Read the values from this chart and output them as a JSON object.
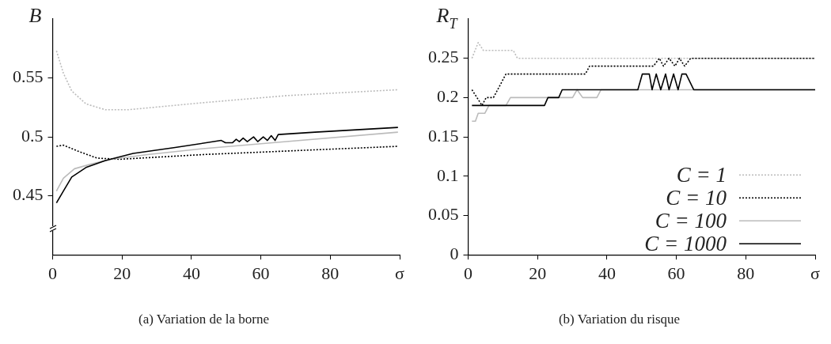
{
  "chart_data": [
    {
      "type": "line",
      "title": "(a) Variation de la borne",
      "ylabel": "B",
      "xlim": [
        0,
        100
      ],
      "ylim": [
        0.4,
        0.6
      ],
      "xticks": [
        0,
        20,
        40,
        60,
        80,
        {
          "value": 100,
          "label": "σ"
        }
      ],
      "yticks": [
        0.45,
        0.5,
        0.55
      ],
      "grid": false,
      "legend": false,
      "marker": "none",
      "series": [
        {
          "color": "#bbbbbb",
          "line_style": "dotted",
          "x": [
            1.1,
            3.1,
            5.5,
            9.6,
            15.2,
            21.7,
            43.3,
            67.4,
            99.5
          ],
          "values": [
            0.573,
            0.554,
            0.539,
            0.528,
            0.523,
            0.523,
            0.529,
            0.535,
            0.54
          ]
        },
        {
          "color": "#000000",
          "line_style": "dotted",
          "x": [
            1.1,
            3.1,
            7.2,
            12.8,
            19.3,
            43.3,
            67.4,
            99.5
          ],
          "values": [
            0.492,
            0.493,
            0.488,
            0.482,
            0.481,
            0.485,
            0.488,
            0.492
          ]
        },
        {
          "color": "#bbbbbb",
          "line_style": "solid",
          "x": [
            1.1,
            3.1,
            6.3,
            11.2,
            16.8,
            27.3,
            43.3,
            67.4,
            99.5
          ],
          "values": [
            0.454,
            0.465,
            0.473,
            0.477,
            0.481,
            0.485,
            0.49,
            0.496,
            0.504
          ]
        },
        {
          "color": "#000000",
          "line_style": "solid",
          "x": [
            1.1,
            3.1,
            5.5,
            9.6,
            15.2,
            23.2,
            35.3,
            48.6,
            49.8,
            51.8,
            52.9,
            53.8,
            54.9,
            56.1,
            57.9,
            59.1,
            60.7,
            61.9,
            63.0,
            64.1,
            65.0,
            75.6,
            99.5
          ],
          "values": [
            0.444,
            0.454,
            0.466,
            0.474,
            0.48,
            0.486,
            0.491,
            0.497,
            0.495,
            0.495,
            0.498,
            0.496,
            0.499,
            0.496,
            0.5,
            0.496,
            0.5,
            0.497,
            0.501,
            0.497,
            0.502,
            0.504,
            0.508
          ]
        }
      ]
    },
    {
      "type": "line",
      "title": "(b) Variation du risque",
      "ylabel": "R$_{T}$",
      "xlim": [
        0,
        100
      ],
      "ylim": [
        0,
        0.3
      ],
      "xticks": [
        0,
        20,
        40,
        60,
        80,
        {
          "value": 100,
          "label": "σ"
        }
      ],
      "yticks": [
        0,
        0.05,
        0.1,
        0.15,
        0.2,
        0.25
      ],
      "grid": false,
      "legend": "bottom right",
      "marker": "none",
      "series": [
        {
          "name": "C = 1",
          "color": "#bbbbbb",
          "line_style": "dotted",
          "x": [
            1.1,
            2.9,
            4.4,
            13,
            14.2,
            100
          ],
          "values": [
            0.25,
            0.27,
            0.26,
            0.26,
            0.25,
            0.25
          ]
        },
        {
          "name": "C = 10",
          "color": "#000000",
          "line_style": "dotted",
          "x": [
            1.1,
            4.0,
            5.2,
            7.3,
            10.9,
            33.8,
            35,
            53.4,
            55.1,
            56.3,
            57.9,
            59.6,
            60.9,
            62.4,
            64.1,
            100
          ],
          "values": [
            0.21,
            0.19,
            0.2,
            0.2,
            0.23,
            0.23,
            0.24,
            0.24,
            0.25,
            0.24,
            0.25,
            0.24,
            0.25,
            0.24,
            0.25,
            0.25
          ]
        },
        {
          "name": "C = 100",
          "color": "#bbbbbb",
          "line_style": "solid",
          "x": [
            1.1,
            2.1,
            2.9,
            4.8,
            6,
            10.9,
            12.2,
            30.1,
            31.4,
            33,
            37.1,
            38.3,
            100
          ],
          "values": [
            0.17,
            0.17,
            0.18,
            0.18,
            0.19,
            0.19,
            0.2,
            0.2,
            0.21,
            0.2,
            0.2,
            0.21,
            0.21
          ]
        },
        {
          "name": "C = 1000",
          "color": "#000000",
          "line_style": "solid",
          "x": [
            1.1,
            22,
            23,
            26.1,
            27.1,
            48.9,
            50.2,
            52.2,
            53,
            54.2,
            55.5,
            56.9,
            57.9,
            59.2,
            60.5,
            61.6,
            62.8,
            65,
            100
          ],
          "values": [
            0.19,
            0.19,
            0.2,
            0.2,
            0.21,
            0.21,
            0.23,
            0.23,
            0.21,
            0.23,
            0.21,
            0.23,
            0.21,
            0.23,
            0.21,
            0.23,
            0.23,
            0.21,
            0.21
          ]
        }
      ]
    }
  ]
}
